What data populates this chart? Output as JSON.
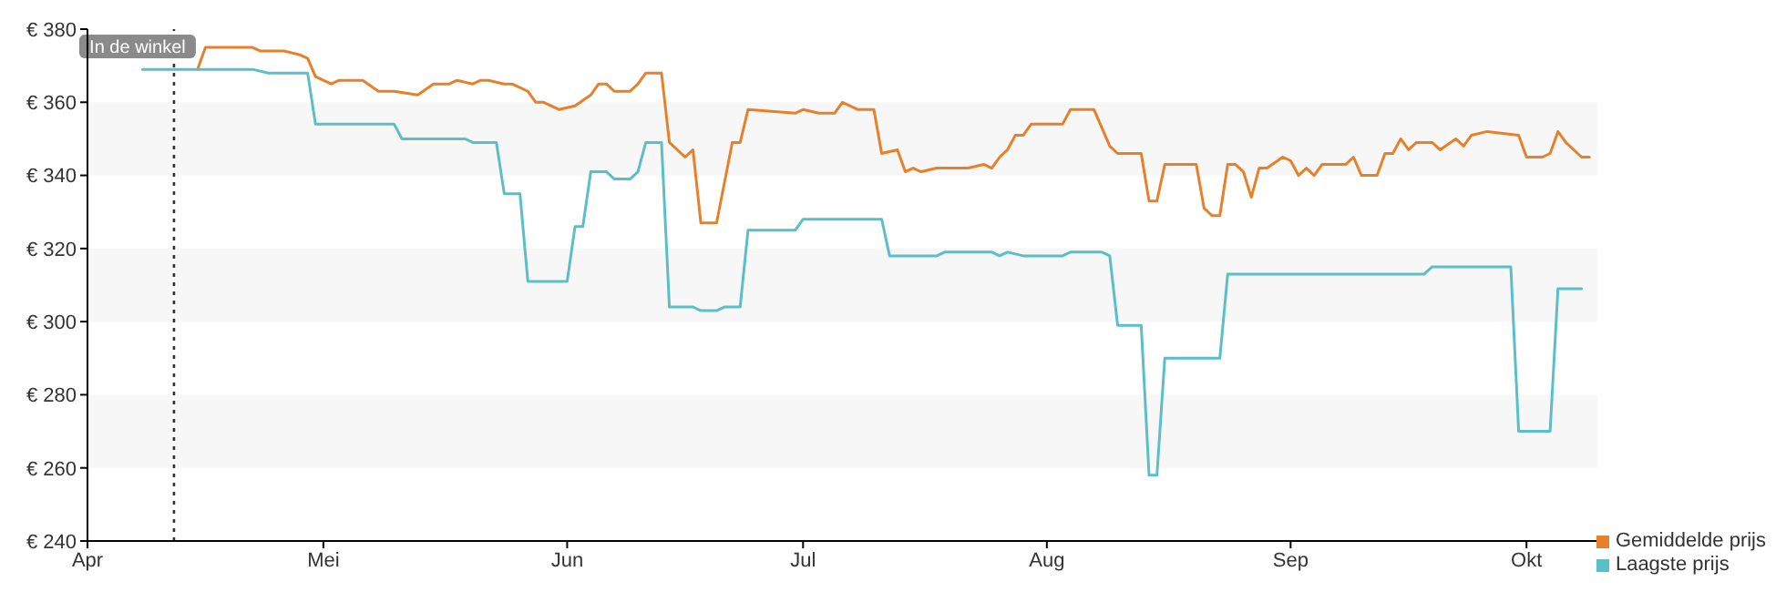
{
  "chart_data": {
    "type": "line",
    "xlim": [
      "--04-01",
      "--10-10"
    ],
    "xticks": [
      {
        "value": "--04-01",
        "label": "Apr"
      },
      {
        "value": "--05-01",
        "label": "Mei"
      },
      {
        "value": "--06-01",
        "label": "Jun"
      },
      {
        "value": "--07-01",
        "label": "Jul"
      },
      {
        "value": "--08-01",
        "label": "Aug"
      },
      {
        "value": "--09-01",
        "label": "Sep"
      },
      {
        "value": "--10-01",
        "label": "Okt"
      }
    ],
    "ylim": [
      240,
      380
    ],
    "yticks": [
      {
        "value": 240,
        "label": "€ 240"
      },
      {
        "value": 260,
        "label": "€ 260"
      },
      {
        "value": 280,
        "label": "€ 280"
      },
      {
        "value": 300,
        "label": "€ 300"
      },
      {
        "value": 320,
        "label": "€ 320"
      },
      {
        "value": 340,
        "label": "€ 340"
      },
      {
        "value": 360,
        "label": "€ 360"
      },
      {
        "value": 380,
        "label": "€ 380"
      }
    ],
    "bands": [
      {
        "axis": "y",
        "from": 260,
        "to": 280,
        "color": "#f7f7f7"
      },
      {
        "axis": "y",
        "from": 300,
        "to": 320,
        "color": "#f7f7f7"
      },
      {
        "axis": "y",
        "from": 340,
        "to": 360,
        "color": "#f7f7f7"
      }
    ],
    "ref_lines": [
      {
        "axis": "x",
        "value": "--04-12",
        "label": "In de winkel",
        "color": "#333333",
        "line_style": "dotted"
      }
    ],
    "legend": "bottom right",
    "marker": "none",
    "line_style": "solid",
    "series": [
      {
        "name": "Gemiddelde prijs",
        "color": "#e8802a",
        "x": [
          "--04-15",
          "--04-16",
          "--04-22",
          "--04-23",
          "--04-26",
          "--04-28",
          "--04-29",
          "--04-30",
          "--05-02",
          "--05-03",
          "--05-06",
          "--05-08",
          "--05-10",
          "--05-13",
          "--05-15",
          "--05-17",
          "--05-18",
          "--05-20",
          "--05-21",
          "--05-22",
          "--05-24",
          "--05-25",
          "--05-27",
          "--05-28",
          "--05-29",
          "--05-31",
          "--06-02",
          "--06-04",
          "--06-05",
          "--06-06",
          "--06-07",
          "--06-09",
          "--06-10",
          "--06-11",
          "--06-13",
          "--06-14",
          "--06-16",
          "--06-17",
          "--06-18",
          "--06-20",
          "--06-22",
          "--06-23",
          "--06-24",
          "--06-30",
          "--07-01",
          "--07-03",
          "--07-05",
          "--07-06",
          "--07-08",
          "--07-10",
          "--07-11",
          "--07-13",
          "--07-14",
          "--07-15",
          "--07-16",
          "--07-18",
          "--07-22",
          "--07-24",
          "--07-25",
          "--07-26",
          "--07-27",
          "--07-28",
          "--07-29",
          "--07-30",
          "--08-03",
          "--08-04",
          "--08-07",
          "--08-09",
          "--08-10",
          "--08-13",
          "--08-14",
          "--08-15",
          "--08-16",
          "--08-20",
          "--08-21",
          "--08-22",
          "--08-23",
          "--08-24",
          "--08-25",
          "--08-26",
          "--08-27",
          "--08-28",
          "--08-29",
          "--08-31",
          "--09-01",
          "--09-02",
          "--09-03",
          "--09-04",
          "--09-05",
          "--09-08",
          "--09-09",
          "--09-10",
          "--09-12",
          "--09-13",
          "--09-14",
          "--09-15",
          "--09-16",
          "--09-17",
          "--09-19",
          "--09-20",
          "--09-22",
          "--09-23",
          "--09-24",
          "--09-26",
          "--09-30",
          "--10-01",
          "--10-03",
          "--10-04",
          "--10-05",
          "--10-06",
          "--10-08",
          "--10-09"
        ],
        "values": [
          369,
          375,
          375,
          374,
          374,
          373,
          372,
          367,
          365,
          366,
          366,
          363,
          363,
          362,
          365,
          365,
          366,
          365,
          366,
          366,
          365,
          365,
          363,
          360,
          360,
          358,
          359,
          362,
          365,
          365,
          363,
          363,
          365,
          368,
          368,
          349,
          345,
          347,
          327,
          327,
          349,
          349,
          358,
          357,
          358,
          357,
          357,
          360,
          358,
          358,
          346,
          347,
          341,
          342,
          341,
          342,
          342,
          343,
          342,
          345,
          347,
          351,
          351,
          354,
          354,
          358,
          358,
          348,
          346,
          346,
          333,
          333,
          343,
          343,
          331,
          329,
          329,
          343,
          343,
          341,
          334,
          342,
          342,
          345,
          344,
          340,
          342,
          340,
          343,
          343,
          345,
          340,
          340,
          346,
          346,
          350,
          347,
          349,
          349,
          347,
          350,
          348,
          351,
          352,
          351,
          345,
          345,
          346,
          352,
          349,
          345,
          345
        ]
      },
      {
        "name": "Laagste prijs",
        "color": "#5bbfc9",
        "x": [
          "--04-08",
          "--04-22",
          "--04-24",
          "--04-29",
          "--04-30",
          "--05-10",
          "--05-11",
          "--05-19",
          "--05-20",
          "--05-23",
          "--05-24",
          "--05-26",
          "--05-27",
          "--06-01",
          "--06-02",
          "--06-03",
          "--06-04",
          "--06-06",
          "--06-07",
          "--06-09",
          "--06-10",
          "--06-11",
          "--06-13",
          "--06-14",
          "--06-17",
          "--06-18",
          "--06-20",
          "--06-21",
          "--06-23",
          "--06-24",
          "--06-30",
          "--07-01",
          "--07-11",
          "--07-12",
          "--07-18",
          "--07-19",
          "--07-25",
          "--07-26",
          "--07-27",
          "--07-29",
          "--08-03",
          "--08-04",
          "--08-08",
          "--08-09",
          "--08-10",
          "--08-13",
          "--08-14",
          "--08-15",
          "--08-16",
          "--08-23",
          "--08-24",
          "--09-18",
          "--09-19",
          "--09-29",
          "--09-30",
          "--10-04",
          "--10-05",
          "--10-08"
        ],
        "values": [
          369,
          369,
          368,
          368,
          354,
          354,
          350,
          350,
          349,
          349,
          335,
          335,
          311,
          311,
          326,
          326,
          341,
          341,
          339,
          339,
          341,
          349,
          349,
          304,
          304,
          303,
          303,
          304,
          304,
          325,
          325,
          328,
          328,
          318,
          318,
          319,
          319,
          318,
          319,
          318,
          318,
          319,
          319,
          318,
          299,
          299,
          258,
          258,
          290,
          290,
          313,
          313,
          315,
          315,
          270,
          270,
          309,
          309
        ]
      }
    ]
  }
}
